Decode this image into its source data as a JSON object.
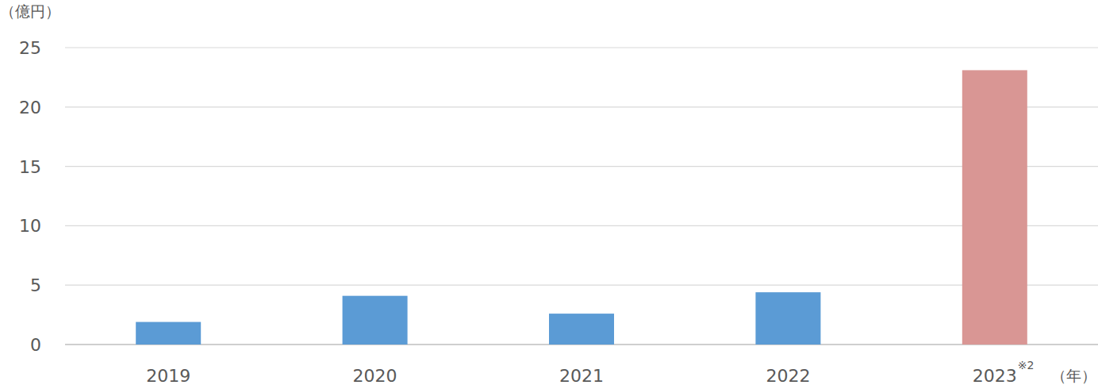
{
  "chart_data": {
    "type": "bar",
    "y_label": "（億円）",
    "x_label": "（年）",
    "annotations": [
      "※2"
    ],
    "categories": [
      "2019",
      "2020",
      "2021",
      "2022",
      "2023"
    ],
    "values": [
      1.9,
      4.1,
      2.6,
      4.4,
      23.1
    ],
    "colors": [
      "#5b9bd5",
      "#5b9bd5",
      "#5b9bd5",
      "#5b9bd5",
      "#d99694"
    ],
    "ylim": [
      0,
      25
    ],
    "yticks": [
      0,
      5,
      10,
      15,
      20,
      25
    ],
    "grid": true
  }
}
